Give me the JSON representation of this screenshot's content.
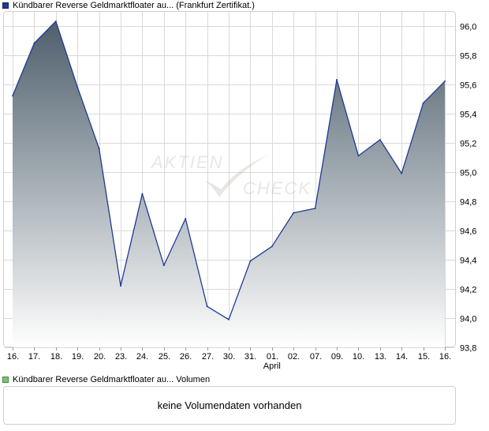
{
  "legend": {
    "price_label": "Kündbarer Reverse Geldmarktfloater au... (Frankfurt Zertifikat.)",
    "price_color": "#1f3a93",
    "volume_label": "Kündbarer Reverse Geldmarktfloater au... Volumen",
    "volume_color": "#7dc47a"
  },
  "watermark": {
    "line1": "AKTIEN",
    "line2": "CHECK"
  },
  "volume_panel": {
    "message": "keine Volumendaten vorhanden"
  },
  "chart_data": {
    "type": "area",
    "categories": [
      "16.",
      "17.",
      "18.",
      "19.",
      "20.",
      "23.",
      "24.",
      "25.",
      "26.",
      "27.",
      "30.",
      "31.",
      "01.",
      "02.",
      "07.",
      "09.",
      "10.",
      "13.",
      "14.",
      "15.",
      "16."
    ],
    "month_label": {
      "text": "April",
      "category_index": 12
    },
    "series": [
      {
        "name": "Kündbarer Reverse Geldmarktfloater au... (Frankfurt Zertifikat.)",
        "values": [
          95.52,
          95.88,
          96.03,
          95.58,
          95.16,
          94.22,
          94.85,
          94.36,
          94.68,
          94.08,
          93.99,
          94.39,
          94.49,
          94.72,
          94.75,
          95.63,
          95.11,
          95.22,
          94.99,
          95.47,
          95.62
        ]
      }
    ],
    "y_ticks": [
      "96,0",
      "95,8",
      "95,6",
      "95,4",
      "95,2",
      "95,0",
      "94,8",
      "94,6",
      "94,4",
      "94,2",
      "94,0",
      "93,8"
    ],
    "ylim": [
      93.8,
      96.1
    ],
    "grid": true,
    "y_axis_side": "right",
    "colors": {
      "line": "#1f3a93",
      "fill_top": "#4e5f6c",
      "fill_bottom": "#ffffff",
      "grid": "#d9d9d9"
    }
  }
}
